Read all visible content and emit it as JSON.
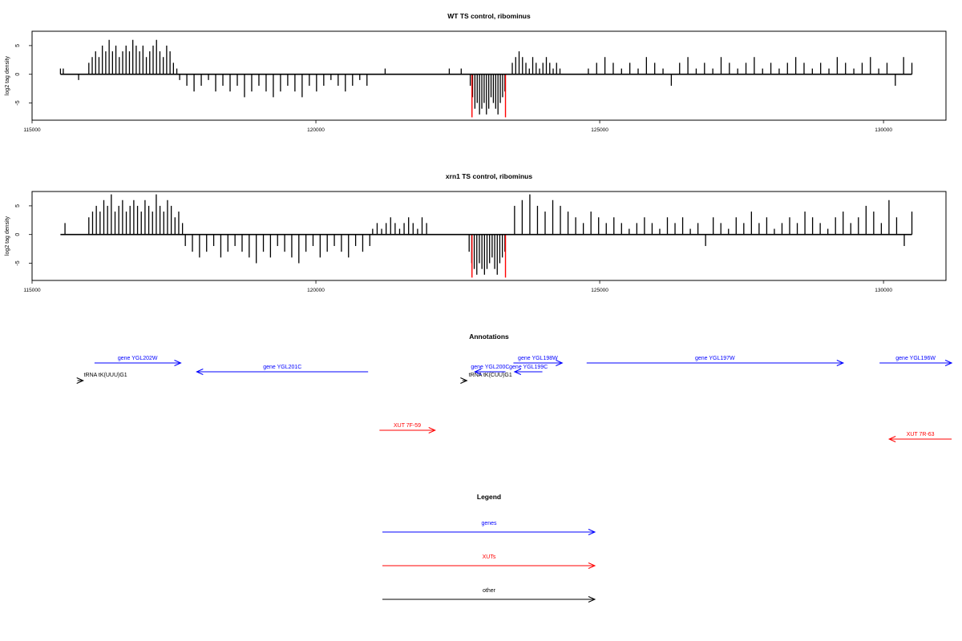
{
  "chart_data": [
    {
      "type": "bar",
      "title": "WT TS control, ribominus",
      "xlabel": "",
      "ylabel": "log2 tag density",
      "xlim": [
        115000,
        131100
      ],
      "ylim": [
        -8,
        7.5
      ],
      "x_ticks": [
        115000,
        120000,
        125000,
        130000
      ],
      "y_ticks": [
        -5,
        0,
        5
      ],
      "baseline": [
        115500,
        130500
      ],
      "grid": false,
      "regions": [
        {
          "from": 115500,
          "to": 115600,
          "values": [
            1,
            1,
            0
          ]
        },
        {
          "from": 115820,
          "to": 115850,
          "values": [
            -1,
            0
          ]
        },
        {
          "from": 116000,
          "to": 117550,
          "values": [
            2,
            3,
            4,
            3,
            5,
            4,
            6,
            4,
            5,
            3,
            4,
            5,
            4,
            6,
            5,
            4,
            5,
            3,
            4,
            5,
            6,
            4,
            3,
            5,
            4,
            2,
            1
          ]
        },
        {
          "from": 117600,
          "to": 120900,
          "values": [
            -1,
            -2,
            -3,
            -2,
            -1,
            -3,
            -2,
            -3,
            -2,
            -4,
            -3,
            -2,
            -3,
            -4,
            -3,
            -2,
            -3,
            -4,
            -2,
            -3,
            -2,
            -1,
            -2,
            -3,
            -2,
            -1,
            -2
          ]
        },
        {
          "from": 121220,
          "to": 121260,
          "values": [
            1
          ]
        },
        {
          "from": 122350,
          "to": 122420,
          "values": [
            1
          ]
        },
        {
          "from": 122560,
          "to": 122600,
          "values": [
            1
          ]
        },
        {
          "from": 122720,
          "to": 123330,
          "values": [
            -2,
            -4,
            -6,
            -5,
            -7,
            -6,
            -5,
            -7,
            -6,
            -4,
            -5,
            -6,
            -7,
            -5,
            -4,
            -3
          ]
        },
        {
          "from": 123460,
          "to": 124300,
          "values": [
            2,
            3,
            4,
            3,
            2,
            1,
            3,
            2,
            1,
            2,
            3,
            2,
            1,
            2,
            1
          ]
        },
        {
          "from": 124800,
          "to": 130500,
          "values": [
            1,
            2,
            3,
            2,
            1,
            2,
            1,
            3,
            2,
            1,
            -2,
            2,
            3,
            1,
            2,
            1,
            3,
            2,
            1,
            2,
            3,
            1,
            2,
            1,
            2,
            3,
            2,
            1,
            2,
            1,
            3,
            2,
            1,
            2,
            3,
            1,
            2,
            -2,
            3,
            2
          ]
        }
      ],
      "red_lines": [
        {
          "x": 122750,
          "y": -7.5
        },
        {
          "x": 123340,
          "y": -7.5
        }
      ]
    },
    {
      "type": "bar",
      "title": "xrn1 TS control, ribominus",
      "xlabel": "",
      "ylabel": "log2 tag density",
      "xlim": [
        115000,
        131100
      ],
      "ylim": [
        -8,
        7.5
      ],
      "x_ticks": [
        115000,
        120000,
        125000,
        130000
      ],
      "y_ticks": [
        -5,
        0,
        5
      ],
      "baseline": [
        115500,
        130500
      ],
      "grid": false,
      "regions": [
        {
          "from": 115580,
          "to": 115620,
          "values": [
            2
          ]
        },
        {
          "from": 116000,
          "to": 117650,
          "values": [
            3,
            4,
            5,
            4,
            6,
            5,
            7,
            4,
            5,
            6,
            4,
            5,
            6,
            5,
            4,
            6,
            5,
            4,
            7,
            5,
            4,
            6,
            5,
            3,
            4,
            2
          ]
        },
        {
          "from": 117700,
          "to": 120950,
          "values": [
            -2,
            -3,
            -4,
            -3,
            -2,
            -4,
            -3,
            -2,
            -3,
            -4,
            -5,
            -3,
            -4,
            -2,
            -3,
            -4,
            -5,
            -3,
            -2,
            -4,
            -3,
            -2,
            -3,
            -4,
            -2,
            -3,
            -2
          ]
        },
        {
          "from": 121000,
          "to": 121950,
          "values": [
            1,
            2,
            1,
            2,
            3,
            2,
            1,
            2,
            3,
            2,
            1,
            3,
            2
          ]
        },
        {
          "from": 122700,
          "to": 123330,
          "values": [
            -3,
            -5,
            -6,
            -7,
            -5,
            -6,
            -7,
            -6,
            -5,
            -4,
            -6,
            -7,
            -5,
            -4,
            -3
          ]
        },
        {
          "from": 123500,
          "to": 130500,
          "values": [
            5,
            6,
            7,
            5,
            4,
            6,
            5,
            4,
            3,
            2,
            4,
            3,
            2,
            3,
            2,
            1,
            2,
            3,
            2,
            1,
            3,
            2,
            3,
            1,
            2,
            -2,
            3,
            2,
            1,
            3,
            2,
            4,
            2,
            3,
            1,
            2,
            3,
            2,
            4,
            3,
            2,
            1,
            3,
            4,
            2,
            3,
            5,
            4,
            2,
            6,
            3,
            -2,
            4
          ]
        }
      ],
      "red_lines": [
        {
          "x": 122750,
          "y": -7.5
        },
        {
          "x": 123340,
          "y": -7.5
        }
      ]
    }
  ],
  "annotations": {
    "title": "Annotations",
    "items": [
      {
        "label": "tRNA tK(UUU)G1",
        "color": "#000000",
        "from": 115800,
        "to": 115900,
        "dir": "right",
        "row": 3
      },
      {
        "label": "gene YGL202W",
        "color": "#0000ff",
        "from": 116100,
        "to": 117620,
        "dir": "right",
        "row": 1
      },
      {
        "label": "gene YGL201C",
        "color": "#0000ff",
        "from": 117900,
        "to": 120920,
        "dir": "left",
        "row": 2
      },
      {
        "label": "tRNA tK(CUU)G1",
        "color": "#000000",
        "from": 122580,
        "to": 122660,
        "dir": "right",
        "row": 3
      },
      {
        "label": "gene YGL200C",
        "color": "#0000ff",
        "from": 122800,
        "to": 123340,
        "dir": "left",
        "row": 2
      },
      {
        "label": "gene YGL198W",
        "color": "#0000ff",
        "from": 123480,
        "to": 124340,
        "dir": "right",
        "row": 1
      },
      {
        "label": "gene YGL199C",
        "color": "#0000ff",
        "from": 123500,
        "to": 123990,
        "dir": "left",
        "row": 2
      },
      {
        "label": "gene YGL197W",
        "color": "#0000ff",
        "from": 124770,
        "to": 129290,
        "dir": "right",
        "row": 1
      },
      {
        "label": "gene YGL196W",
        "color": "#0000ff",
        "from": 129930,
        "to": 131200,
        "dir": "right",
        "row": 1
      },
      {
        "label": "XUT 7F-59",
        "color": "#ff0000",
        "from": 121120,
        "to": 122100,
        "dir": "right",
        "row": 4
      },
      {
        "label": "XUT 7R-63",
        "color": "#ff0000",
        "from": 130100,
        "to": 131200,
        "dir": "left",
        "row": 5
      }
    ]
  },
  "legend": {
    "title": "Legend",
    "items": [
      {
        "label": "genes",
        "color": "#0000ff"
      },
      {
        "label": "XUTs",
        "color": "#ff0000"
      },
      {
        "label": "other",
        "color": "#000000"
      }
    ]
  }
}
